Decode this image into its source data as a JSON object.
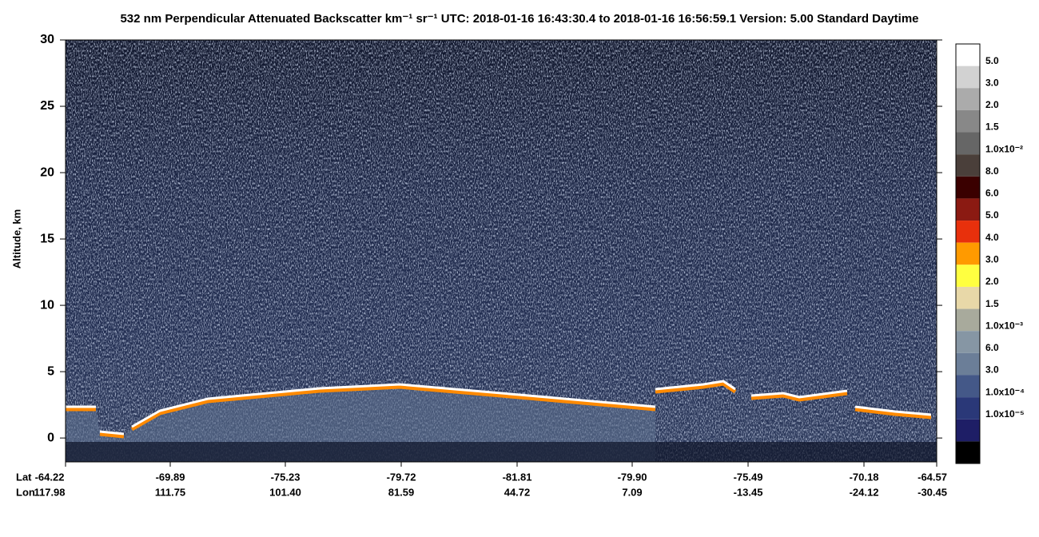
{
  "chart_data": {
    "type": "heatmap",
    "title": "532 nm Perpendicular Attenuated Backscatter km⁻¹ sr⁻¹  UTC: 2018-01-16 16:43:30.4 to 2018-01-16 16:56:59.1  Version: 5.00 Standard Daytime",
    "y_label": "Altitude, km",
    "ylim": [
      -1.8,
      30
    ],
    "yticks": [
      0,
      5,
      10,
      15,
      20,
      25,
      30
    ],
    "lat_title": "Lat",
    "lon_title": "Lon",
    "lat_labels": [
      "-64.22",
      "-69.89",
      "-75.23",
      "-79.72",
      "-81.81",
      "-79.90",
      "-75.49",
      "-70.18",
      "-64.57"
    ],
    "lon_labels": [
      "117.98",
      "111.75",
      "101.40",
      "81.59",
      "44.72",
      "7.09",
      "-13.45",
      "-24.12",
      "-30.45"
    ],
    "colorbar": {
      "colors": [
        "#ffffff",
        "#d2d2d2",
        "#ababab",
        "#888888",
        "#666666",
        "#4a3f3a",
        "#3a0000",
        "#8b1a12",
        "#e8300c",
        "#ff9a00",
        "#ffff40",
        "#e8d8a8",
        "#a8aa9c",
        "#8696a4",
        "#6b7e98",
        "#445888",
        "#2a3878",
        "#1e1e66",
        "#000000"
      ],
      "labels": [
        "5.0",
        "3.0",
        "2.0",
        "1.5",
        "1.0x10⁻²",
        "8.0",
        "6.0",
        "5.0",
        "4.0",
        "3.0",
        "2.0",
        "1.5",
        "1.0x10⁻³",
        "6.0",
        "3.0",
        "1.0x10⁻⁴",
        "1.0x10⁻⁵"
      ]
    }
  }
}
